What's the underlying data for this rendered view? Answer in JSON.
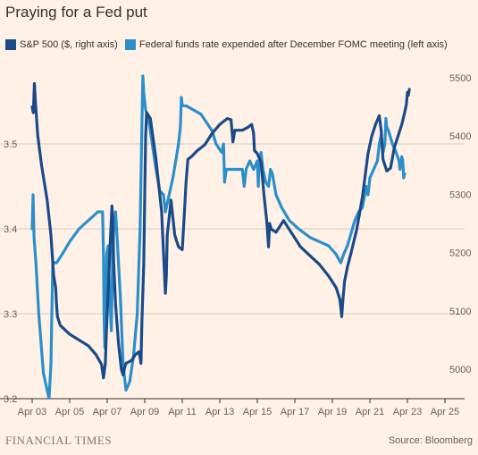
{
  "title": "Praying for a Fed put",
  "footer": {
    "brand": "FINANCIAL TIMES",
    "source": "Source: Bloomberg"
  },
  "colors": {
    "background": "#fff1e5",
    "sp500": "#1b4a8a",
    "fed_funds": "#2a8fcb",
    "grid": "#d9cdc1",
    "axis_text": "#66605c"
  },
  "chart_data": {
    "type": "line",
    "title": "Praying for a Fed put",
    "x_ticks": [
      "Apr 03",
      "Apr 05",
      "Apr 07",
      "Apr 09",
      "Apr 11",
      "Apr 13",
      "Apr 15",
      "Apr 17",
      "Apr 19",
      "Apr 21",
      "Apr 23",
      "Apr 25"
    ],
    "x_unit": "days from Apr 03",
    "xlim": [
      0,
      22
    ],
    "left_axis": {
      "ticks": [
        3.2,
        3.3,
        3.4,
        3.5
      ],
      "ylim": [
        3.2,
        3.58
      ]
    },
    "right_axis": {
      "ticks": [
        5000,
        5100,
        5200,
        5300,
        5400,
        5500
      ],
      "ylim": [
        4955,
        5515
      ]
    },
    "grid": true,
    "legend_position": "top",
    "series": [
      {
        "name": "S&P 500 ($, right axis)",
        "axis": "right",
        "color": "#1b4a8a",
        "points": [
          [
            0.0,
            5450
          ],
          [
            0.06,
            5440
          ],
          [
            0.12,
            5490
          ],
          [
            0.18,
            5455
          ],
          [
            0.3,
            5400
          ],
          [
            0.5,
            5350
          ],
          [
            0.8,
            5290
          ],
          [
            1.0,
            5230
          ],
          [
            1.15,
            5160
          ],
          [
            1.25,
            5140
          ],
          [
            1.3,
            5110
          ],
          [
            1.35,
            5090
          ],
          [
            1.5,
            5075
          ],
          [
            2.0,
            5060
          ],
          [
            2.6,
            5048
          ],
          [
            3.0,
            5040
          ],
          [
            3.4,
            5025
          ],
          [
            3.7,
            5008
          ],
          [
            3.8,
            4985
          ],
          [
            3.9,
            5010
          ],
          [
            3.95,
            5060
          ],
          [
            4.05,
            5130
          ],
          [
            4.15,
            5210
          ],
          [
            4.25,
            5280
          ],
          [
            4.3,
            5255
          ],
          [
            4.35,
            5180
          ],
          [
            4.45,
            5110
          ],
          [
            4.6,
            5045
          ],
          [
            4.75,
            5000
          ],
          [
            4.85,
            4990
          ],
          [
            4.95,
            5005
          ],
          [
            5.0,
            5010
          ],
          [
            5.3,
            5015
          ],
          [
            5.5,
            5025
          ],
          [
            5.7,
            5030
          ],
          [
            5.8,
            5010
          ],
          [
            5.85,
            5080
          ],
          [
            5.95,
            5180
          ],
          [
            6.0,
            5300
          ],
          [
            6.05,
            5400
          ],
          [
            6.1,
            5440
          ],
          [
            6.3,
            5430
          ],
          [
            6.6,
            5360
          ],
          [
            6.9,
            5270
          ],
          [
            7.0,
            5200
          ],
          [
            7.1,
            5130
          ],
          [
            7.15,
            5160
          ],
          [
            7.2,
            5230
          ],
          [
            7.4,
            5290
          ],
          [
            7.6,
            5230
          ],
          [
            7.8,
            5210
          ],
          [
            8.0,
            5205
          ],
          [
            8.1,
            5260
          ],
          [
            8.2,
            5320
          ],
          [
            8.3,
            5360
          ],
          [
            8.5,
            5365
          ],
          [
            8.8,
            5375
          ],
          [
            9.2,
            5385
          ],
          [
            9.6,
            5405
          ],
          [
            10.0,
            5420
          ],
          [
            10.4,
            5430
          ],
          [
            10.6,
            5428
          ],
          [
            10.7,
            5390
          ],
          [
            10.8,
            5410
          ],
          [
            11.2,
            5410
          ],
          [
            11.5,
            5415
          ],
          [
            11.7,
            5420
          ],
          [
            11.8,
            5405
          ],
          [
            11.85,
            5375
          ],
          [
            12.0,
            5370
          ],
          [
            12.2,
            5355
          ],
          [
            12.35,
            5300
          ],
          [
            12.5,
            5255
          ],
          [
            12.6,
            5210
          ],
          [
            12.65,
            5250
          ],
          [
            12.75,
            5240
          ],
          [
            13.0,
            5235
          ],
          [
            13.2,
            5245
          ],
          [
            13.4,
            5255
          ],
          [
            13.6,
            5245
          ],
          [
            13.9,
            5230
          ],
          [
            14.3,
            5210
          ],
          [
            14.8,
            5195
          ],
          [
            15.3,
            5180
          ],
          [
            15.8,
            5160
          ],
          [
            16.2,
            5140
          ],
          [
            16.4,
            5120
          ],
          [
            16.5,
            5090
          ],
          [
            16.55,
            5115
          ],
          [
            16.65,
            5150
          ],
          [
            16.8,
            5175
          ],
          [
            17.0,
            5200
          ],
          [
            17.3,
            5240
          ],
          [
            17.6,
            5295
          ],
          [
            17.9,
            5370
          ],
          [
            18.1,
            5400
          ],
          [
            18.3,
            5420
          ],
          [
            18.5,
            5435
          ],
          [
            18.6,
            5410
          ],
          [
            18.7,
            5360
          ],
          [
            18.9,
            5340
          ],
          [
            19.1,
            5345
          ],
          [
            19.3,
            5380
          ],
          [
            19.5,
            5400
          ],
          [
            19.7,
            5420
          ],
          [
            19.85,
            5440
          ],
          [
            19.95,
            5455
          ],
          [
            20.0,
            5475
          ],
          [
            20.05,
            5470
          ],
          [
            20.1,
            5480
          ]
        ]
      },
      {
        "name": "Federal funds rate expended after December FOMC meeting (left axis)",
        "axis": "left",
        "color": "#2a8fcb",
        "points": [
          [
            0.0,
            3.4
          ],
          [
            0.05,
            3.44
          ],
          [
            0.1,
            3.39
          ],
          [
            0.2,
            3.36
          ],
          [
            0.35,
            3.3
          ],
          [
            0.6,
            3.23
          ],
          [
            0.8,
            3.21
          ],
          [
            0.9,
            3.2
          ],
          [
            1.0,
            3.24
          ],
          [
            1.05,
            3.3
          ],
          [
            1.1,
            3.36
          ],
          [
            1.3,
            3.36
          ],
          [
            1.6,
            3.37
          ],
          [
            2.0,
            3.385
          ],
          [
            2.5,
            3.4
          ],
          [
            3.0,
            3.41
          ],
          [
            3.5,
            3.42
          ],
          [
            3.75,
            3.42
          ],
          [
            3.8,
            3.37
          ],
          [
            3.83,
            3.3
          ],
          [
            3.87,
            3.26
          ],
          [
            3.92,
            3.31
          ],
          [
            3.97,
            3.37
          ],
          [
            4.05,
            3.38
          ],
          [
            4.12,
            3.33
          ],
          [
            4.22,
            3.28
          ],
          [
            4.3,
            3.38
          ],
          [
            4.35,
            3.4
          ],
          [
            4.45,
            3.42
          ],
          [
            4.55,
            3.38
          ],
          [
            4.7,
            3.32
          ],
          [
            4.85,
            3.24
          ],
          [
            5.0,
            3.21
          ],
          [
            5.2,
            3.22
          ],
          [
            5.4,
            3.25
          ],
          [
            5.6,
            3.3
          ],
          [
            5.75,
            3.4
          ],
          [
            5.85,
            3.52
          ],
          [
            5.9,
            3.58
          ],
          [
            5.95,
            3.56
          ],
          [
            6.05,
            3.54
          ],
          [
            6.2,
            3.53
          ],
          [
            6.4,
            3.5
          ],
          [
            6.6,
            3.47
          ],
          [
            6.8,
            3.445
          ],
          [
            7.0,
            3.44
          ],
          [
            7.1,
            3.42
          ],
          [
            7.3,
            3.44
          ],
          [
            7.5,
            3.46
          ],
          [
            7.65,
            3.48
          ],
          [
            7.8,
            3.5
          ],
          [
            7.9,
            3.52
          ],
          [
            7.95,
            3.555
          ],
          [
            8.0,
            3.545
          ],
          [
            8.2,
            3.545
          ],
          [
            8.6,
            3.54
          ],
          [
            9.0,
            3.535
          ],
          [
            9.3,
            3.525
          ],
          [
            9.6,
            3.515
          ],
          [
            9.8,
            3.5
          ],
          [
            10.1,
            3.49
          ],
          [
            10.2,
            3.5
          ],
          [
            10.25,
            3.455
          ],
          [
            10.35,
            3.47
          ],
          [
            10.8,
            3.47
          ],
          [
            11.2,
            3.47
          ],
          [
            11.3,
            3.45
          ],
          [
            11.4,
            3.47
          ],
          [
            11.6,
            3.48
          ],
          [
            11.8,
            3.47
          ],
          [
            12.0,
            3.48
          ],
          [
            12.05,
            3.45
          ],
          [
            12.1,
            3.48
          ],
          [
            12.2,
            3.49
          ],
          [
            12.3,
            3.47
          ],
          [
            12.45,
            3.455
          ],
          [
            12.6,
            3.45
          ],
          [
            12.7,
            3.47
          ],
          [
            12.8,
            3.465
          ],
          [
            13.0,
            3.44
          ],
          [
            13.3,
            3.425
          ],
          [
            13.7,
            3.41
          ],
          [
            14.2,
            3.4
          ],
          [
            14.8,
            3.39
          ],
          [
            15.3,
            3.385
          ],
          [
            15.8,
            3.38
          ],
          [
            16.2,
            3.37
          ],
          [
            16.45,
            3.36
          ],
          [
            16.6,
            3.37
          ],
          [
            16.8,
            3.38
          ],
          [
            17.0,
            3.395
          ],
          [
            17.2,
            3.41
          ],
          [
            17.4,
            3.42
          ],
          [
            17.6,
            3.425
          ],
          [
            17.8,
            3.45
          ],
          [
            17.9,
            3.44
          ],
          [
            18.0,
            3.46
          ],
          [
            18.2,
            3.47
          ],
          [
            18.4,
            3.48
          ],
          [
            18.5,
            3.5
          ],
          [
            18.6,
            3.51
          ],
          [
            18.7,
            3.49
          ],
          [
            18.8,
            3.5
          ],
          [
            18.85,
            3.53
          ],
          [
            18.9,
            3.52
          ],
          [
            19.0,
            3.515
          ],
          [
            19.2,
            3.5
          ],
          [
            19.4,
            3.49
          ],
          [
            19.55,
            3.48
          ],
          [
            19.6,
            3.47
          ],
          [
            19.7,
            3.485
          ],
          [
            19.75,
            3.48
          ],
          [
            19.8,
            3.46
          ],
          [
            19.85,
            3.465
          ]
        ]
      }
    ]
  }
}
